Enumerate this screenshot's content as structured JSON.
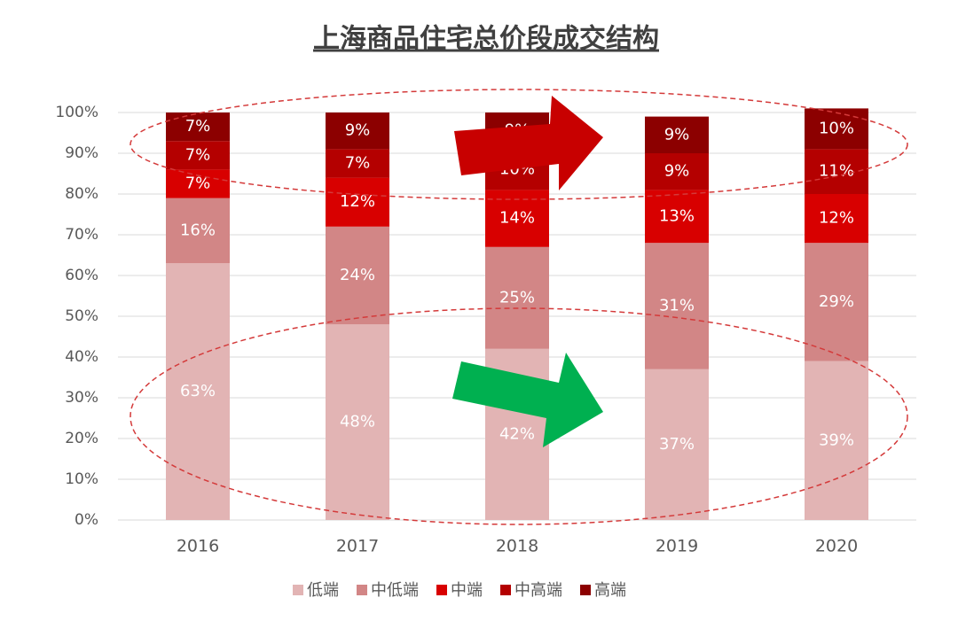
{
  "chart_data": {
    "type": "stacked-bar",
    "title": "上海商品住宅总价段成交结构",
    "categories": [
      "2016",
      "2017",
      "2018",
      "2019",
      "2020"
    ],
    "series": [
      {
        "name": "低端",
        "color": "#e2b4b4",
        "values": [
          63,
          48,
          42,
          37,
          39
        ],
        "value_labels": [
          "63%",
          "48%",
          "42%",
          "37%",
          "39%"
        ]
      },
      {
        "name": "中低端",
        "color": "#d28686",
        "values": [
          16,
          24,
          25,
          31,
          29
        ],
        "value_labels": [
          "16%",
          "24%",
          "25%",
          "31%",
          "29%"
        ]
      },
      {
        "name": "中端",
        "color": "#d80000",
        "values": [
          7,
          12,
          14,
          13,
          12
        ],
        "value_labels": [
          "7%",
          "12%",
          "14%",
          "13%",
          "12%"
        ]
      },
      {
        "name": "中高端",
        "color": "#b40000",
        "values": [
          7,
          7,
          10,
          9,
          11
        ],
        "value_labels": [
          "7%",
          "7%",
          "10%",
          "9%",
          "11%"
        ]
      },
      {
        "name": "高端",
        "color": "#8c0000",
        "values": [
          7,
          9,
          9,
          9,
          10
        ],
        "value_labels": [
          "7%",
          "9%",
          "9%",
          "9%",
          "10%"
        ]
      }
    ],
    "ylim": [
      0,
      100
    ],
    "yticks": [
      {
        "value": 0,
        "label": "0%"
      },
      {
        "value": 10,
        "label": "10%"
      },
      {
        "value": 20,
        "label": "20%"
      },
      {
        "value": 30,
        "label": "30%"
      },
      {
        "value": 40,
        "label": "40%"
      },
      {
        "value": 50,
        "label": "50%"
      },
      {
        "value": 60,
        "label": "60%"
      },
      {
        "value": 70,
        "label": "70%"
      },
      {
        "value": 80,
        "label": "80%"
      },
      {
        "value": 90,
        "label": "90%"
      },
      {
        "value": 100,
        "label": "100%"
      }
    ],
    "grid": true
  }
}
